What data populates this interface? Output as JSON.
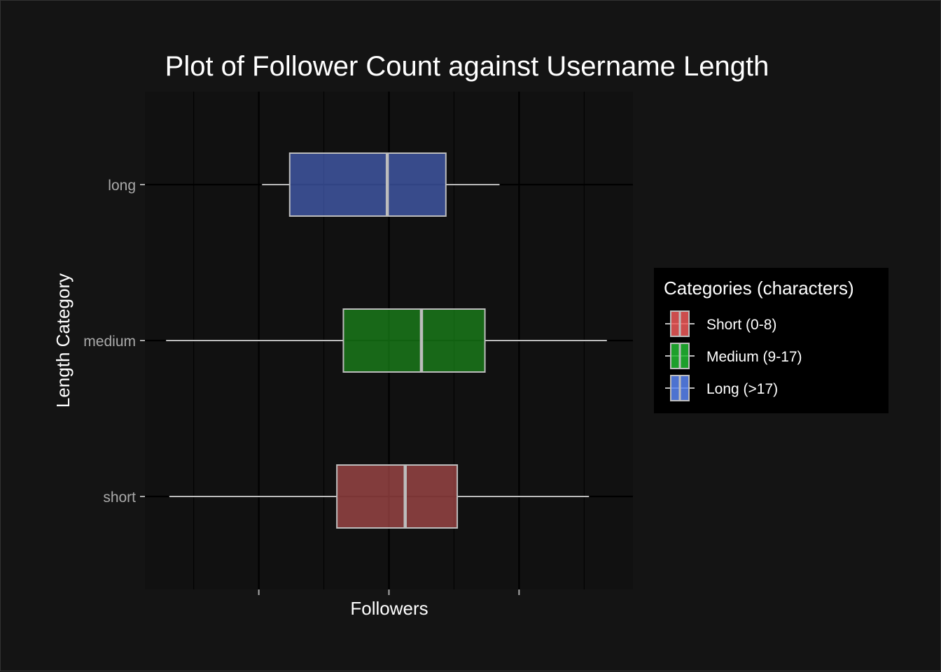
{
  "chart_data": {
    "type": "boxplot",
    "orientation": "horizontal",
    "title": "Plot of Follower Count against Username Length",
    "xlabel": "Followers",
    "ylabel": "Length Category",
    "x_tick_labels_visible": false,
    "xlim": [
      0,
      15
    ],
    "grid": true,
    "categories": [
      "short",
      "medium",
      "long"
    ],
    "series": [
      {
        "category": "short",
        "min": 0.75,
        "q1": 5.9,
        "median": 8.0,
        "q3": 9.6,
        "max": 13.65,
        "color": "#e06060"
      },
      {
        "category": "medium",
        "min": 0.65,
        "q1": 6.1,
        "median": 8.5,
        "q3": 10.45,
        "max": 14.2,
        "color": "#1fb01f"
      },
      {
        "category": "long",
        "min": 3.6,
        "q1": 4.45,
        "median": 7.45,
        "q3": 9.25,
        "max": 10.9,
        "color": "#5a7cf0"
      }
    ],
    "legend": {
      "title": "Categories (characters)",
      "position": "right",
      "entries": [
        {
          "label": "Short (0-8)",
          "color": "#f05a5a"
        },
        {
          "label": "Medium (9-17)",
          "color": "#22bb33"
        },
        {
          "label": "Long (>17)",
          "color": "#5a86f5"
        }
      ]
    },
    "colors": {
      "background": "#141414",
      "panel": "#111111",
      "gridline": "#000000",
      "box_border": "#bdbdbd"
    }
  }
}
